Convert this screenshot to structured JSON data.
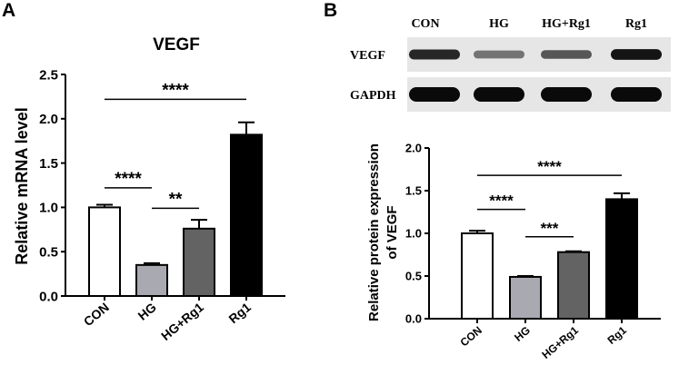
{
  "panels": {
    "a": "A",
    "b": "B"
  },
  "blot": {
    "lanes": [
      "CON",
      "HG",
      "HG+Rg1",
      "Rg1"
    ],
    "rows": [
      {
        "label": "VEGF",
        "intensity": [
          0.85,
          0.45,
          0.6,
          0.95
        ]
      },
      {
        "label": "GAPDH",
        "intensity": [
          1,
          1,
          1,
          1
        ]
      }
    ]
  },
  "chart_data": [
    {
      "type": "bar",
      "title": "VEGF",
      "xlabel": "",
      "ylabel": "Relative mRNA level",
      "categories": [
        "CON",
        "HG",
        "HG+Rg1",
        "Rg1"
      ],
      "values": [
        1.0,
        0.35,
        0.76,
        1.82
      ],
      "errors": [
        0.03,
        0.02,
        0.1,
        0.14
      ],
      "colors": [
        "#ffffff",
        "#a9a9b1",
        "#636363",
        "#000000"
      ],
      "ylim": [
        0,
        2.5
      ],
      "yticks": [
        "0.0",
        "0.5",
        "1.0",
        "1.5",
        "2.0",
        "2.5"
      ],
      "significance": [
        {
          "from": 0,
          "to": 1,
          "y": 1.22,
          "label": "****"
        },
        {
          "from": 1,
          "to": 2,
          "y": 0.99,
          "label": "**"
        },
        {
          "from": 0,
          "to": 3,
          "y": 2.22,
          "label": "****"
        }
      ]
    },
    {
      "type": "bar",
      "title": "",
      "xlabel": "",
      "ylabel": "Relative protein expression of VEGF",
      "categories": [
        "CON",
        "HG",
        "HG+Rg1",
        "Rg1"
      ],
      "values": [
        1.0,
        0.49,
        0.78,
        1.4
      ],
      "errors": [
        0.03,
        0.01,
        0.01,
        0.07
      ],
      "colors": [
        "#ffffff",
        "#a9a9b1",
        "#636363",
        "#000000"
      ],
      "ylim": [
        0,
        2.0
      ],
      "yticks": [
        "0.0",
        "0.5",
        "1.0",
        "1.5",
        "2.0"
      ],
      "significance": [
        {
          "from": 0,
          "to": 1,
          "y": 1.28,
          "label": "****"
        },
        {
          "from": 1,
          "to": 2,
          "y": 0.96,
          "label": "***"
        },
        {
          "from": 0,
          "to": 3,
          "y": 1.68,
          "label": "****"
        }
      ]
    }
  ]
}
